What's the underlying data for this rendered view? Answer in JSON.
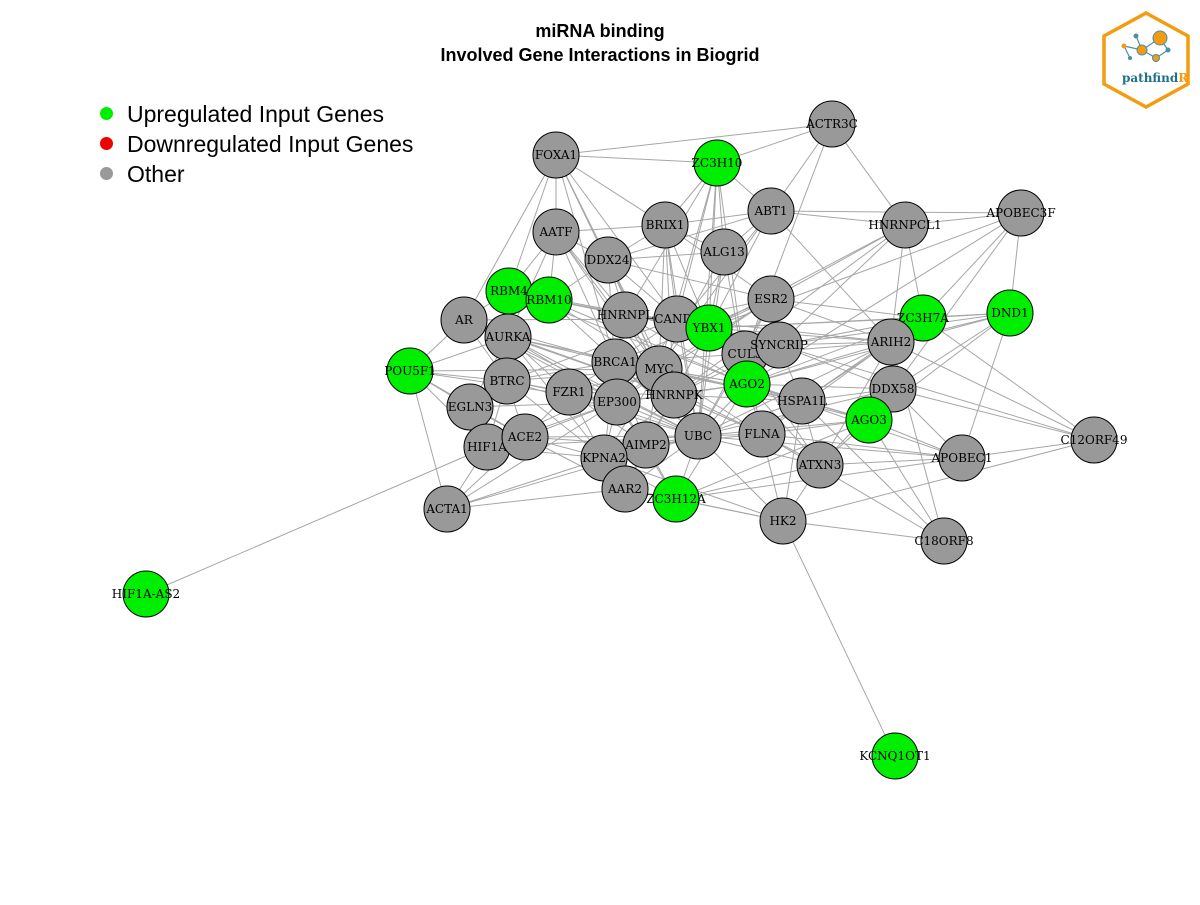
{
  "title": {
    "line1": "miRNA binding",
    "line2": "Involved Gene Interactions in Biogrid"
  },
  "legend": [
    {
      "label": "Upregulated Input Genes",
      "color": "#00ee00"
    },
    {
      "label": "Downregulated Input Genes",
      "color": "#ee0000"
    },
    {
      "label": "Other",
      "color": "#999999"
    }
  ],
  "logo": {
    "text_main": "pathfind",
    "text_accent": "R",
    "border_color": "#f39c12",
    "accent_color": "#f39c12",
    "text_color": "#1f6f8b"
  },
  "colors": {
    "up": "#00ee00",
    "down": "#ee0000",
    "other": "#999999",
    "edge": "#a6a6a6"
  },
  "nodes": [
    {
      "id": "FOXA1",
      "status": "other"
    },
    {
      "id": "ACTR3C",
      "status": "other"
    },
    {
      "id": "ZC3H10",
      "status": "up"
    },
    {
      "id": "ABT1",
      "status": "other"
    },
    {
      "id": "AATF",
      "status": "other"
    },
    {
      "id": "BRIX1",
      "status": "other"
    },
    {
      "id": "ALG13",
      "status": "other"
    },
    {
      "id": "DDX24",
      "status": "other"
    },
    {
      "id": "HNRNPCL1",
      "status": "other"
    },
    {
      "id": "APOBEC3F",
      "status": "other"
    },
    {
      "id": "RBM4",
      "status": "up"
    },
    {
      "id": "RBM10",
      "status": "up"
    },
    {
      "id": "ESR2",
      "status": "other"
    },
    {
      "id": "AR",
      "status": "other"
    },
    {
      "id": "HNRNPL",
      "status": "other"
    },
    {
      "id": "CAND1",
      "status": "other"
    },
    {
      "id": "YBX1",
      "status": "up"
    },
    {
      "id": "ZC3H7A",
      "status": "up"
    },
    {
      "id": "DND1",
      "status": "up"
    },
    {
      "id": "AURKA",
      "status": "other"
    },
    {
      "id": "CUL3",
      "status": "other"
    },
    {
      "id": "SYNCRIP",
      "status": "other"
    },
    {
      "id": "ARIH2",
      "status": "other"
    },
    {
      "id": "POU5F1",
      "status": "up"
    },
    {
      "id": "BRCA1",
      "status": "other"
    },
    {
      "id": "MYC",
      "status": "other"
    },
    {
      "id": "BTRC",
      "status": "other"
    },
    {
      "id": "FZR1",
      "status": "other"
    },
    {
      "id": "AGO2",
      "status": "up"
    },
    {
      "id": "HNRNPK",
      "status": "other"
    },
    {
      "id": "EP300",
      "status": "other"
    },
    {
      "id": "HSPA1L",
      "status": "other"
    },
    {
      "id": "DDX58",
      "status": "other"
    },
    {
      "id": "EGLN3",
      "status": "other"
    },
    {
      "id": "AGO3",
      "status": "up"
    },
    {
      "id": "HIF1A",
      "status": "other"
    },
    {
      "id": "ACE2",
      "status": "other"
    },
    {
      "id": "AIMP2",
      "status": "other"
    },
    {
      "id": "UBC",
      "status": "other"
    },
    {
      "id": "FLNA",
      "status": "other"
    },
    {
      "id": "C12ORF49",
      "status": "other"
    },
    {
      "id": "KPNA2",
      "status": "other"
    },
    {
      "id": "APOBEC1",
      "status": "other"
    },
    {
      "id": "ATXN3",
      "status": "other"
    },
    {
      "id": "AAR2",
      "status": "other"
    },
    {
      "id": "ZC3H12A",
      "status": "up"
    },
    {
      "id": "ACTA1",
      "status": "other"
    },
    {
      "id": "HK2",
      "status": "other"
    },
    {
      "id": "C18ORF8",
      "status": "other"
    },
    {
      "id": "HIF1A-AS2",
      "status": "up"
    },
    {
      "id": "KCNQ1OT1",
      "status": "up"
    }
  ]
}
